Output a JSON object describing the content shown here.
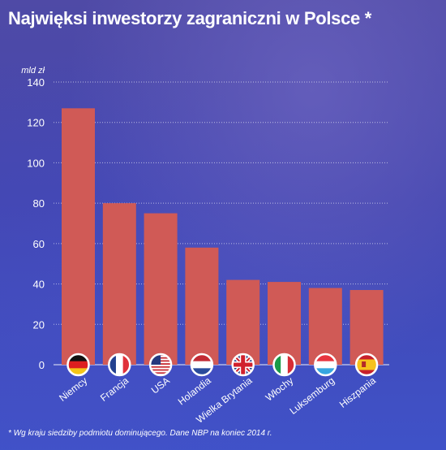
{
  "title": "Najwięksi inwestorzy zagraniczni w Polsce *",
  "footnote": "* Wg kraju siedziby podmiotu dominującego. Dane NBP na koniec 2014 r.",
  "colors": {
    "bar": "#d05a56",
    "grid": "#ffffff",
    "text": "#ffffff"
  },
  "chart_data": {
    "type": "bar",
    "title": "Najwięksi inwestorzy zagraniczni w Polsce *",
    "ylabel": "mld zł",
    "xlabel": "",
    "ylim": [
      0,
      140
    ],
    "yticks": [
      0,
      20,
      40,
      60,
      80,
      100,
      120,
      140
    ],
    "grid": true,
    "legend": "none",
    "categories": [
      "Niemcy",
      "Francja",
      "USA",
      "Holandia",
      "Wielka Brytania",
      "Włochy",
      "Luksemburg",
      "Hiszpania"
    ],
    "values": [
      127,
      80,
      75,
      58,
      42,
      41,
      38,
      37
    ],
    "flags": [
      "flag-germany-icon",
      "flag-france-icon",
      "flag-usa-icon",
      "flag-netherlands-icon",
      "flag-uk-icon",
      "flag-italy-icon",
      "flag-luxembourg-icon",
      "flag-spain-icon"
    ]
  }
}
